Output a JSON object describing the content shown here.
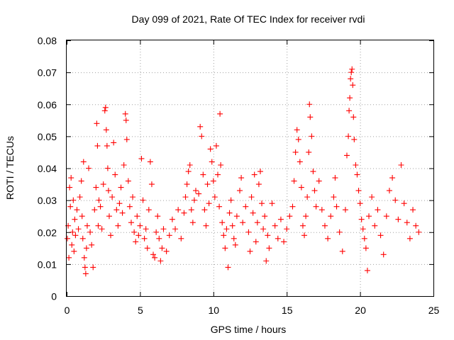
{
  "chart_data": {
    "type": "scatter",
    "title": "Day 099 of 2021, Rate Of TEC Index for receiver rvdi",
    "xlabel": "GPS time / hours",
    "ylabel": "ROTI / TECUs",
    "xlim": [
      0,
      25
    ],
    "ylim": [
      0,
      0.08
    ],
    "x_ticks": [
      0,
      5,
      10,
      15,
      20,
      25
    ],
    "y_ticks": [
      0,
      0.01,
      0.02,
      0.03,
      0.04,
      0.05,
      0.06,
      0.07,
      0.08
    ],
    "x_tick_labels": [
      "0",
      "5",
      "10",
      "15",
      "20",
      "25"
    ],
    "y_tick_labels": [
      "0",
      "0.01",
      "0.02",
      "0.03",
      "0.04",
      "0.05",
      "0.06",
      "0.07",
      "0.08"
    ],
    "grid": true,
    "marker": "+",
    "marker_color": "#ff0000",
    "series": [
      {
        "values": [
          [
            0.05,
            0.018
          ],
          [
            0.1,
            0.022
          ],
          [
            0.15,
            0.012
          ],
          [
            0.2,
            0.034
          ],
          [
            0.25,
            0.028
          ],
          [
            0.3,
            0.037
          ],
          [
            0.35,
            0.016
          ],
          [
            0.4,
            0.02
          ],
          [
            0.45,
            0.03
          ],
          [
            0.5,
            0.014
          ],
          [
            0.55,
            0.024
          ],
          [
            0.6,
            0.019
          ],
          [
            0.7,
            0.027
          ],
          [
            0.8,
            0.021
          ],
          [
            0.9,
            0.031
          ],
          [
            1.0,
            0.036
          ],
          [
            1.05,
            0.025
          ],
          [
            1.1,
            0.018
          ],
          [
            1.15,
            0.042
          ],
          [
            1.2,
            0.012
          ],
          [
            1.25,
            0.009
          ],
          [
            1.3,
            0.007
          ],
          [
            1.35,
            0.015
          ],
          [
            1.4,
            0.022
          ],
          [
            1.5,
            0.04
          ],
          [
            1.6,
            0.02
          ],
          [
            1.7,
            0.016
          ],
          [
            1.8,
            0.009
          ],
          [
            1.9,
            0.027
          ],
          [
            2.0,
            0.034
          ],
          [
            2.05,
            0.054
          ],
          [
            2.1,
            0.047
          ],
          [
            2.15,
            0.022
          ],
          [
            2.2,
            0.03
          ],
          [
            2.3,
            0.028
          ],
          [
            2.4,
            0.021
          ],
          [
            2.5,
            0.035
          ],
          [
            2.6,
            0.058
          ],
          [
            2.65,
            0.059
          ],
          [
            2.7,
            0.052
          ],
          [
            2.75,
            0.047
          ],
          [
            2.8,
            0.04
          ],
          [
            2.85,
            0.033
          ],
          [
            2.9,
            0.025
          ],
          [
            3.0,
            0.019
          ],
          [
            3.1,
            0.031
          ],
          [
            3.2,
            0.048
          ],
          [
            3.3,
            0.038
          ],
          [
            3.4,
            0.027
          ],
          [
            3.5,
            0.022
          ],
          [
            3.6,
            0.029
          ],
          [
            3.7,
            0.034
          ],
          [
            3.8,
            0.026
          ],
          [
            3.9,
            0.041
          ],
          [
            4.0,
            0.057
          ],
          [
            4.05,
            0.055
          ],
          [
            4.1,
            0.049
          ],
          [
            4.2,
            0.036
          ],
          [
            4.3,
            0.028
          ],
          [
            4.4,
            0.023
          ],
          [
            4.5,
            0.031
          ],
          [
            4.6,
            0.02
          ],
          [
            4.7,
            0.017
          ],
          [
            4.8,
            0.025
          ],
          [
            4.9,
            0.019
          ],
          [
            5.0,
            0.022
          ],
          [
            5.1,
            0.043
          ],
          [
            5.2,
            0.03
          ],
          [
            5.3,
            0.018
          ],
          [
            5.4,
            0.021
          ],
          [
            5.5,
            0.015
          ],
          [
            5.6,
            0.027
          ],
          [
            5.7,
            0.042
          ],
          [
            5.8,
            0.035
          ],
          [
            5.9,
            0.013
          ],
          [
            6.0,
            0.012
          ],
          [
            6.1,
            0.02
          ],
          [
            6.2,
            0.025
          ],
          [
            6.3,
            0.018
          ],
          [
            6.4,
            0.011
          ],
          [
            6.5,
            0.015
          ],
          [
            6.6,
            0.021
          ],
          [
            6.8,
            0.014
          ],
          [
            7.0,
            0.019
          ],
          [
            7.2,
            0.024
          ],
          [
            7.4,
            0.021
          ],
          [
            7.6,
            0.027
          ],
          [
            7.8,
            0.018
          ],
          [
            8.0,
            0.026
          ],
          [
            8.1,
            0.031
          ],
          [
            8.2,
            0.035
          ],
          [
            8.3,
            0.039
          ],
          [
            8.4,
            0.041
          ],
          [
            8.5,
            0.027
          ],
          [
            8.6,
            0.023
          ],
          [
            8.7,
            0.03
          ],
          [
            8.8,
            0.033
          ],
          [
            9.0,
            0.032
          ],
          [
            9.1,
            0.053
          ],
          [
            9.2,
            0.05
          ],
          [
            9.3,
            0.038
          ],
          [
            9.4,
            0.027
          ],
          [
            9.5,
            0.022
          ],
          [
            9.6,
            0.035
          ],
          [
            9.7,
            0.029
          ],
          [
            9.8,
            0.046
          ],
          [
            9.9,
            0.042
          ],
          [
            10.0,
            0.036
          ],
          [
            10.1,
            0.031
          ],
          [
            10.2,
            0.047
          ],
          [
            10.3,
            0.038
          ],
          [
            10.4,
            0.028
          ],
          [
            10.45,
            0.057
          ],
          [
            10.5,
            0.041
          ],
          [
            10.6,
            0.023
          ],
          [
            10.7,
            0.019
          ],
          [
            10.8,
            0.015
          ],
          [
            10.9,
            0.021
          ],
          [
            11.0,
            0.009
          ],
          [
            11.1,
            0.026
          ],
          [
            11.2,
            0.03
          ],
          [
            11.3,
            0.022
          ],
          [
            11.4,
            0.018
          ],
          [
            11.5,
            0.016
          ],
          [
            11.6,
            0.025
          ],
          [
            11.8,
            0.033
          ],
          [
            11.9,
            0.037
          ],
          [
            12.0,
            0.023
          ],
          [
            12.2,
            0.028
          ],
          [
            12.4,
            0.02
          ],
          [
            12.5,
            0.014
          ],
          [
            12.6,
            0.031
          ],
          [
            12.7,
            0.026
          ],
          [
            12.8,
            0.038
          ],
          [
            12.9,
            0.017
          ],
          [
            13.0,
            0.023
          ],
          [
            13.1,
            0.035
          ],
          [
            13.2,
            0.039
          ],
          [
            13.3,
            0.029
          ],
          [
            13.4,
            0.021
          ],
          [
            13.5,
            0.025
          ],
          [
            13.6,
            0.011
          ],
          [
            13.7,
            0.019
          ],
          [
            13.8,
            0.015
          ],
          [
            14.0,
            0.029
          ],
          [
            14.2,
            0.022
          ],
          [
            14.4,
            0.018
          ],
          [
            14.6,
            0.024
          ],
          [
            14.8,
            0.017
          ],
          [
            15.0,
            0.021
          ],
          [
            15.2,
            0.025
          ],
          [
            15.4,
            0.028
          ],
          [
            15.5,
            0.036
          ],
          [
            15.6,
            0.045
          ],
          [
            15.7,
            0.052
          ],
          [
            15.8,
            0.049
          ],
          [
            15.9,
            0.042
          ],
          [
            16.0,
            0.034
          ],
          [
            16.1,
            0.022
          ],
          [
            16.2,
            0.019
          ],
          [
            16.3,
            0.025
          ],
          [
            16.4,
            0.031
          ],
          [
            16.5,
            0.045
          ],
          [
            16.55,
            0.06
          ],
          [
            16.6,
            0.056
          ],
          [
            16.7,
            0.05
          ],
          [
            16.8,
            0.039
          ],
          [
            16.9,
            0.033
          ],
          [
            17.0,
            0.028
          ],
          [
            17.2,
            0.036
          ],
          [
            17.4,
            0.027
          ],
          [
            17.6,
            0.022
          ],
          [
            17.8,
            0.018
          ],
          [
            18.0,
            0.025
          ],
          [
            18.2,
            0.031
          ],
          [
            18.3,
            0.037
          ],
          [
            18.4,
            0.028
          ],
          [
            18.6,
            0.02
          ],
          [
            18.8,
            0.014
          ],
          [
            19.0,
            0.027
          ],
          [
            19.1,
            0.044
          ],
          [
            19.2,
            0.05
          ],
          [
            19.25,
            0.058
          ],
          [
            19.3,
            0.062
          ],
          [
            19.35,
            0.068
          ],
          [
            19.4,
            0.07
          ],
          [
            19.45,
            0.071
          ],
          [
            19.5,
            0.066
          ],
          [
            19.55,
            0.056
          ],
          [
            19.6,
            0.049
          ],
          [
            19.7,
            0.041
          ],
          [
            19.8,
            0.038
          ],
          [
            19.9,
            0.033
          ],
          [
            20.0,
            0.029
          ],
          [
            20.1,
            0.024
          ],
          [
            20.2,
            0.021
          ],
          [
            20.3,
            0.018
          ],
          [
            20.4,
            0.015
          ],
          [
            20.5,
            0.008
          ],
          [
            20.6,
            0.025
          ],
          [
            20.8,
            0.031
          ],
          [
            21.0,
            0.022
          ],
          [
            21.2,
            0.027
          ],
          [
            21.4,
            0.019
          ],
          [
            21.6,
            0.013
          ],
          [
            21.8,
            0.025
          ],
          [
            22.0,
            0.033
          ],
          [
            22.2,
            0.037
          ],
          [
            22.4,
            0.03
          ],
          [
            22.6,
            0.024
          ],
          [
            22.8,
            0.041
          ],
          [
            23.0,
            0.029
          ],
          [
            23.2,
            0.023
          ],
          [
            23.4,
            0.018
          ],
          [
            23.6,
            0.027
          ],
          [
            23.8,
            0.022
          ],
          [
            24.0,
            0.02
          ]
        ]
      }
    ]
  }
}
